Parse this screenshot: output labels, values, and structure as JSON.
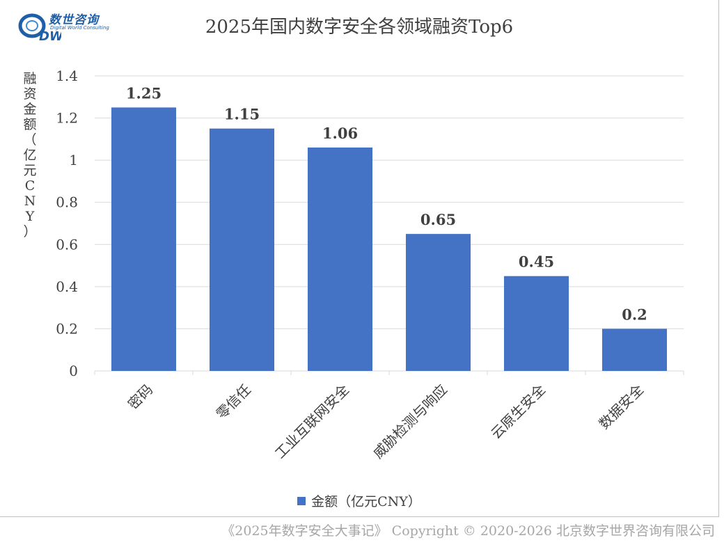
{
  "logo": {
    "name_cn": "数世咨询",
    "name_en": "Digital World Consulting",
    "mark_letters": "DW"
  },
  "chart_data": {
    "type": "bar",
    "title": "2025年国内数字安全各领域融资Top6",
    "xlabel": "",
    "ylabel": "融资金额（亿元CNY）",
    "categories": [
      "密码",
      "零信任",
      "工业互联网安全",
      "威胁检测与响应",
      "云原生安全",
      "数据安全"
    ],
    "series": [
      {
        "name": "金额（亿元CNY）",
        "values": [
          1.25,
          1.15,
          1.06,
          0.65,
          0.45,
          0.2
        ]
      }
    ],
    "data_labels": [
      "1.25",
      "1.15",
      "1.06",
      "0.65",
      "0.45",
      "0.2"
    ],
    "ylim": [
      0,
      1.4
    ],
    "yticks": [
      0,
      0.2,
      0.4,
      0.6,
      0.8,
      1,
      1.2,
      1.4
    ],
    "ytick_labels": [
      "0",
      "0.2",
      "0.4",
      "0.6",
      "0.8",
      "1",
      "1.2",
      "1.4"
    ],
    "grid": true,
    "legend_position": "bottom",
    "bar_color": "#4472c4"
  },
  "footer": {
    "text": "《2025年数字安全大事记》 Copyright © 2020-2026 北京数字世界咨询有限公司"
  }
}
